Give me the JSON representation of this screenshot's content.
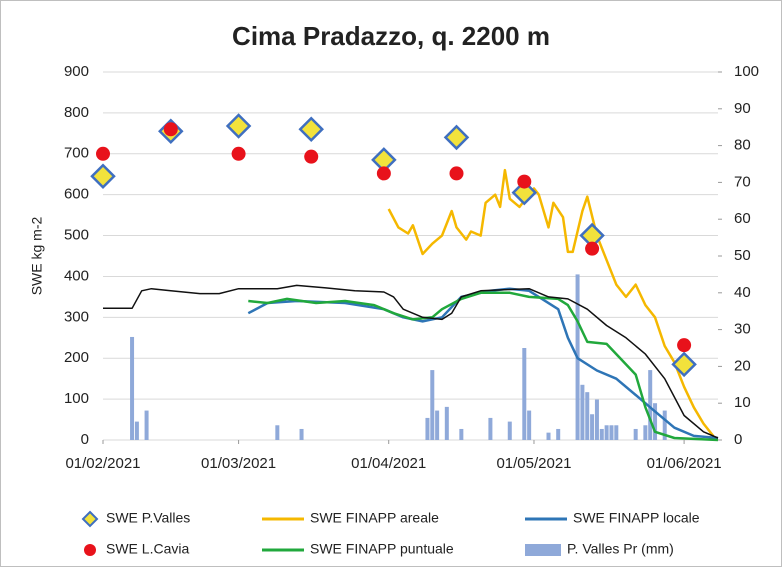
{
  "chart_data": {
    "type": "line",
    "title": "Cima Pradazzo, q. 2200 m",
    "ylabel": "SWE kg m-2",
    "xlim": [
      "2021-02-01",
      "2021-06-08"
    ],
    "xticks": [
      {
        "value": "2021-02-01",
        "label": "01/02/2021"
      },
      {
        "value": "2021-03-01",
        "label": "01/03/2021"
      },
      {
        "value": "2021-04-01",
        "label": "01/04/2021"
      },
      {
        "value": "2021-05-01",
        "label": "01/05/2021"
      },
      {
        "value": "2021-06-01",
        "label": "01/06/2021"
      }
    ],
    "ylim": [
      0,
      900
    ],
    "yticks": [
      0,
      100,
      200,
      300,
      400,
      500,
      600,
      700,
      800,
      900
    ],
    "y2lim": [
      0,
      100
    ],
    "y2ticks": [
      0,
      10,
      20,
      30,
      40,
      50,
      60,
      70,
      80,
      90,
      100
    ],
    "grid": true,
    "series": [
      {
        "name": "SWE P.Valles",
        "type": "scatter",
        "marker": "diamond",
        "color": "#f2e23c",
        "edgecolor": "#3f6fc0",
        "x": [
          "2021-02-01",
          "2021-02-15",
          "2021-03-01",
          "2021-03-16",
          "2021-03-31",
          "2021-04-15",
          "2021-04-29",
          "2021-05-13",
          "2021-06-01"
        ],
        "values": [
          645,
          755,
          768,
          760,
          685,
          740,
          605,
          500,
          185
        ]
      },
      {
        "name": "SWE FINAPP areale",
        "type": "line",
        "color": "#f5b800",
        "x": [
          "2021-04-01",
          "2021-04-03",
          "2021-04-05",
          "2021-04-06",
          "2021-04-08",
          "2021-04-10",
          "2021-04-12",
          "2021-04-14",
          "2021-04-15",
          "2021-04-17",
          "2021-04-18",
          "2021-04-20",
          "2021-04-21",
          "2021-04-23",
          "2021-04-24",
          "2021-04-25",
          "2021-04-26",
          "2021-04-28",
          "2021-04-30",
          "2021-05-01",
          "2021-05-02",
          "2021-05-04",
          "2021-05-05",
          "2021-05-07",
          "2021-05-08",
          "2021-05-09",
          "2021-05-11",
          "2021-05-12",
          "2021-05-14",
          "2021-05-16",
          "2021-05-18",
          "2021-05-20",
          "2021-05-22",
          "2021-05-24",
          "2021-05-26",
          "2021-05-28",
          "2021-05-30",
          "2021-06-01",
          "2021-06-03",
          "2021-06-05",
          "2021-06-07"
        ],
        "values": [
          565,
          520,
          505,
          525,
          455,
          480,
          500,
          560,
          520,
          490,
          510,
          500,
          580,
          600,
          570,
          660,
          590,
          570,
          600,
          615,
          600,
          520,
          580,
          545,
          460,
          460,
          560,
          595,
          500,
          440,
          380,
          350,
          380,
          330,
          300,
          230,
          190,
          130,
          80,
          40,
          10
        ]
      },
      {
        "name": "SWE FINAPP locale",
        "type": "line",
        "color": "#2e75b6",
        "x": [
          "2021-03-03",
          "2021-03-07",
          "2021-03-13",
          "2021-03-23",
          "2021-03-31",
          "2021-04-04",
          "2021-04-08",
          "2021-04-12",
          "2021-04-16",
          "2021-04-22",
          "2021-04-26",
          "2021-04-30",
          "2021-05-02",
          "2021-05-06",
          "2021-05-08",
          "2021-05-10",
          "2021-05-14",
          "2021-05-18",
          "2021-05-22",
          "2021-05-26",
          "2021-05-30",
          "2021-06-03",
          "2021-06-08"
        ],
        "values": [
          310,
          335,
          340,
          335,
          320,
          300,
          290,
          300,
          350,
          365,
          370,
          365,
          350,
          320,
          250,
          200,
          170,
          150,
          110,
          70,
          30,
          10,
          5
        ]
      },
      {
        "name": "SWE L.Cavia",
        "type": "scatter",
        "marker": "circle",
        "color": "#e8121b",
        "x": [
          "2021-02-01",
          "2021-02-15",
          "2021-03-01",
          "2021-03-16",
          "2021-03-31",
          "2021-04-15",
          "2021-04-29",
          "2021-05-13",
          "2021-06-01"
        ],
        "values": [
          700,
          760,
          700,
          693,
          652,
          652,
          632,
          468,
          232
        ]
      },
      {
        "name": "SWE FINAPP puntuale",
        "type": "line",
        "color": "#21a83c",
        "x": [
          "2021-03-03",
          "2021-03-07",
          "2021-03-11",
          "2021-03-17",
          "2021-03-23",
          "2021-03-29",
          "2021-03-31",
          "2021-04-02",
          "2021-04-06",
          "2021-04-10",
          "2021-04-12",
          "2021-04-16",
          "2021-04-20",
          "2021-04-26",
          "2021-04-30",
          "2021-05-06",
          "2021-05-08",
          "2021-05-10",
          "2021-05-12",
          "2021-05-16",
          "2021-05-18",
          "2021-05-22",
          "2021-05-24",
          "2021-05-26",
          "2021-05-30",
          "2021-06-08"
        ],
        "values": [
          340,
          335,
          345,
          335,
          340,
          330,
          320,
          310,
          295,
          300,
          320,
          345,
          360,
          360,
          350,
          345,
          330,
          290,
          240,
          235,
          210,
          160,
          80,
          20,
          5,
          0
        ]
      },
      {
        "name": "P. Valles Pr (mm)",
        "type": "bar",
        "axis": "y2",
        "color": "#8fa9d9",
        "x": [
          "2021-02-07",
          "2021-02-08",
          "2021-02-10",
          "2021-03-09",
          "2021-03-14",
          "2021-04-09",
          "2021-04-10",
          "2021-04-11",
          "2021-04-13",
          "2021-04-16",
          "2021-04-22",
          "2021-04-26",
          "2021-04-29",
          "2021-04-30",
          "2021-05-04",
          "2021-05-06",
          "2021-05-10",
          "2021-05-11",
          "2021-05-12",
          "2021-05-13",
          "2021-05-14",
          "2021-05-15",
          "2021-05-16",
          "2021-05-17",
          "2021-05-18",
          "2021-05-22",
          "2021-05-24",
          "2021-05-25",
          "2021-05-26",
          "2021-05-28"
        ],
        "values": [
          28,
          5,
          8,
          4,
          3,
          6,
          19,
          8,
          9,
          3,
          6,
          5,
          25,
          8,
          2,
          3,
          45,
          15,
          13,
          7,
          11,
          3,
          4,
          4,
          4,
          3,
          4,
          19,
          10,
          8
        ]
      },
      {
        "type": "line",
        "color": "#111111",
        "x": [
          "2021-02-01",
          "2021-02-07",
          "2021-02-09",
          "2021-02-11",
          "2021-02-15",
          "2021-02-21",
          "2021-02-25",
          "2021-03-01",
          "2021-03-09",
          "2021-03-13",
          "2021-03-19",
          "2021-03-25",
          "2021-03-31",
          "2021-04-02",
          "2021-04-04",
          "2021-04-08",
          "2021-04-12",
          "2021-04-14",
          "2021-04-16",
          "2021-04-20",
          "2021-04-26",
          "2021-04-30",
          "2021-05-04",
          "2021-05-08",
          "2021-05-12",
          "2021-05-16",
          "2021-05-20",
          "2021-05-24",
          "2021-05-28",
          "2021-06-01",
          "2021-06-05",
          "2021-06-08"
        ],
        "values": [
          322,
          322,
          365,
          370,
          365,
          358,
          358,
          370,
          370,
          378,
          372,
          365,
          362,
          350,
          320,
          300,
          295,
          310,
          350,
          365,
          368,
          370,
          350,
          345,
          320,
          280,
          250,
          210,
          150,
          60,
          20,
          5
        ]
      }
    ]
  }
}
